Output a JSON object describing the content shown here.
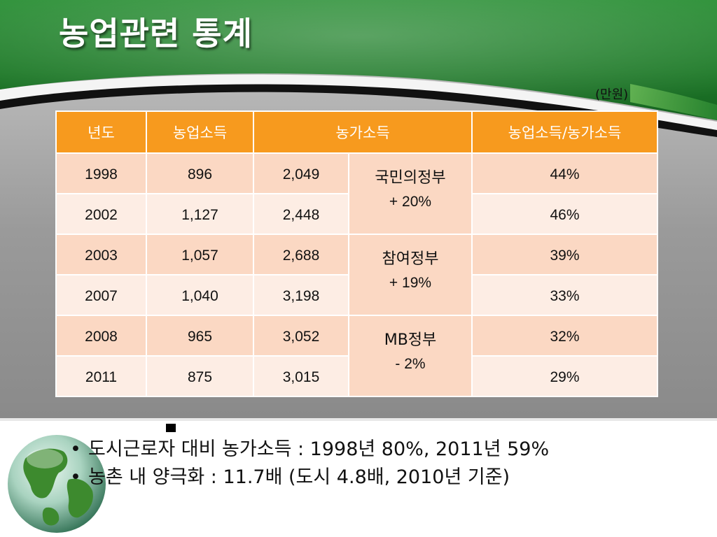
{
  "title": "농업관련 통계",
  "unit": "(만원)",
  "table": {
    "headers": [
      "년도",
      "농업소득",
      "농가소득",
      "농업소득/농가소득"
    ],
    "rows": [
      {
        "year": "1998",
        "farm_income": "896",
        "household_income": "2,049",
        "ratio": "44%"
      },
      {
        "year": "2002",
        "farm_income": "1,127",
        "household_income": "2,448",
        "ratio": "46%"
      },
      {
        "year": "2003",
        "farm_income": "1,057",
        "household_income": "2,688",
        "ratio": "39%"
      },
      {
        "year": "2007",
        "farm_income": "1,040",
        "household_income": "3,198",
        "ratio": "33%"
      },
      {
        "year": "2008",
        "farm_income": "965",
        "household_income": "3,052",
        "ratio": "32%"
      },
      {
        "year": "2011",
        "farm_income": "875",
        "household_income": "3,015",
        "ratio": "29%"
      }
    ],
    "governments": [
      {
        "name": "국민의정부",
        "change": "+ 20%"
      },
      {
        "name": "참여정부",
        "change": "+ 19%"
      },
      {
        "name": "MB정부",
        "change": "- 2%"
      }
    ]
  },
  "bullets": [
    "도시근로자 대비 농가소득 : 1998년 80%, 2011년 59%",
    "농촌 내 양극화 : 11.7배 (도시 4.8배,  2010년 기준)"
  ],
  "bullet_symbol": "•",
  "colors": {
    "header_green": "#1e7a2a",
    "table_header": "#f79a1e",
    "row_dark": "#fbd8c3",
    "row_light": "#fdede4"
  },
  "icons": [
    "globe-icon"
  ]
}
